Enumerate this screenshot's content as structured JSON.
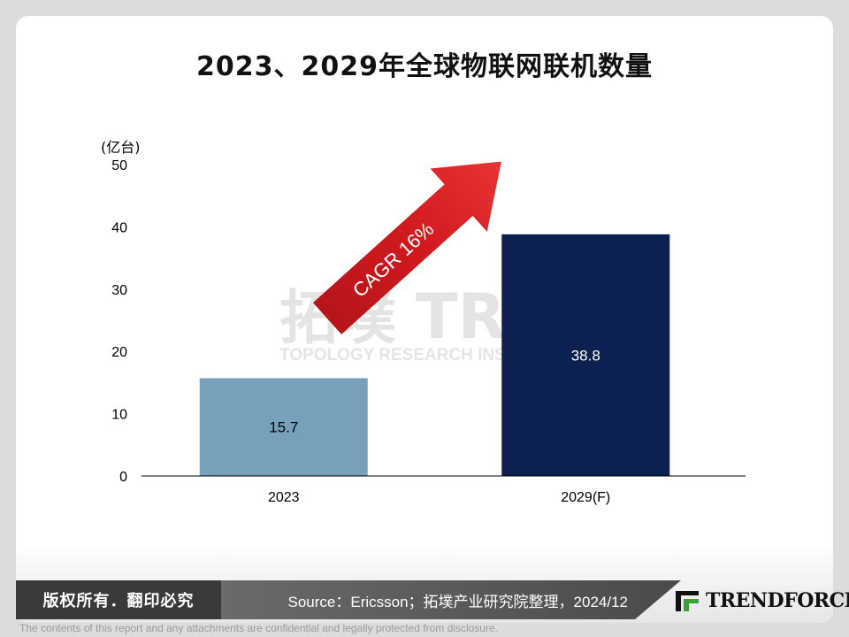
{
  "title": "2023、2029年全球物联网联机数量",
  "watermark": {
    "chinese": "拓墣",
    "logo_text": "TRi",
    "english": "TOPOLOGY RESEARCH INSTITUTE"
  },
  "chart_data": {
    "type": "bar",
    "categories": [
      "2023",
      "2029(F)"
    ],
    "values": [
      15.7,
      38.8
    ],
    "data_labels": [
      "15.7",
      "38.8"
    ],
    "bar_colors": [
      "#77a1bb",
      "#0d2150"
    ],
    "label_colors": [
      "#000000",
      "#ffffff"
    ],
    "unit_label": "(亿台)",
    "ylim": [
      0,
      50
    ],
    "yticks": [
      0,
      10,
      20,
      30,
      40,
      50
    ],
    "grid": false,
    "annotation": {
      "text": "CAGR 16%",
      "arrow_color": "#d01a1f",
      "text_color": "#ffffff"
    }
  },
  "footer": {
    "copyright": "版权所有．翻印必究",
    "source": "Source：Ericsson；拓墣产业研究院整理，2024/12",
    "logo": "TRENDFORCE",
    "disclaimer": "The contents of this report and any attachments are confidential and legally protected from disclosure."
  }
}
